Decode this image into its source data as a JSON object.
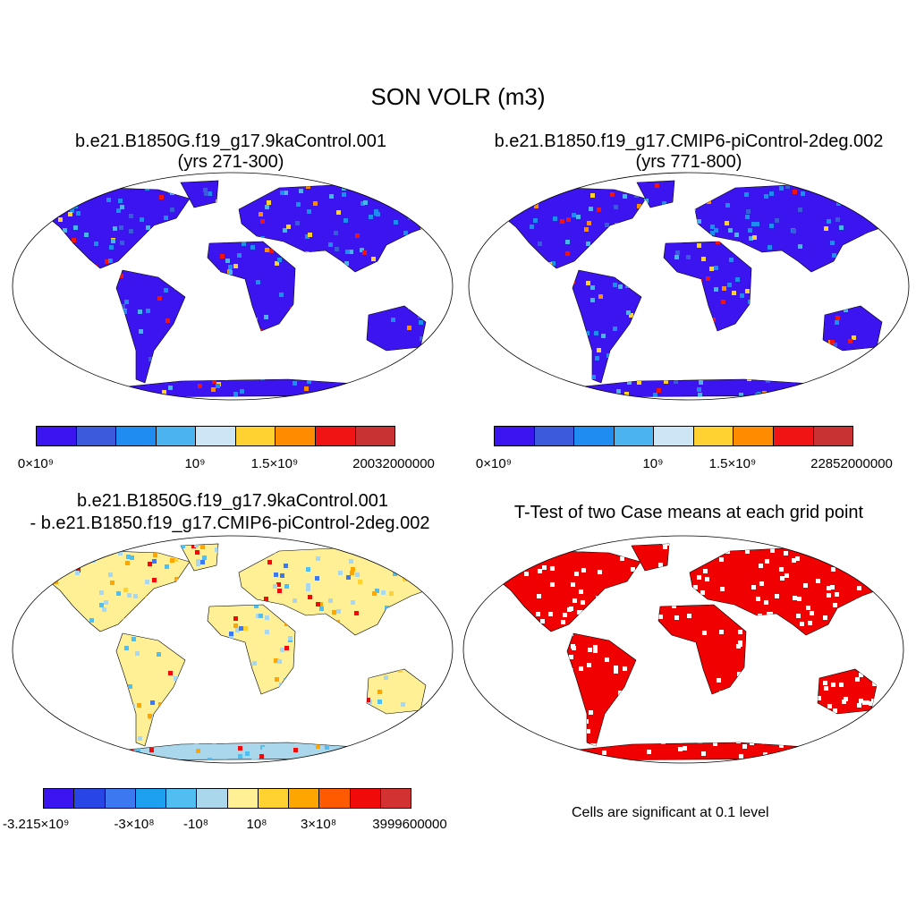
{
  "figure_title": "SON VOLR (m3)",
  "panels": [
    {
      "id": "case1",
      "title_line1": "b.e21.B1850G.f19_g17.9kaControl.001",
      "title_line2": "(yrs 271-300)",
      "palette": [
        "#3c14f0",
        "#3c5adc",
        "#1e8cf0",
        "#4bb4f0",
        "#cde6f5",
        "#ffd232",
        "#ff8c00",
        "#f01414",
        "#c83232"
      ],
      "labels": [
        "0×10⁹",
        "10⁹",
        "1.5×10⁹",
        "20032000000"
      ],
      "land_base": "#3c14f0",
      "hot": "#f01414"
    },
    {
      "id": "case2",
      "title_line1": "b.e21.B1850.f19_g17.CMIP6-piControl-2deg.002",
      "title_line2": "(yrs 771-800)",
      "palette": [
        "#3c14f0",
        "#3c5adc",
        "#1e8cf0",
        "#4bb4f0",
        "#cde6f5",
        "#ffd232",
        "#ff8c00",
        "#f01414",
        "#c83232"
      ],
      "labels": [
        "0×10⁹",
        "10⁹",
        "1.5×10⁹",
        "22852000000"
      ],
      "land_base": "#3c14f0",
      "hot": "#f01414"
    },
    {
      "id": "diff",
      "title_line1": "b.e21.B1850G.f19_g17.9kaControl.001",
      "title_line2": "- b.e21.B1850.f19_g17.CMIP6-piControl-2deg.002",
      "palette": [
        "#3c14f0",
        "#2846e6",
        "#3c78f0",
        "#1ea0f0",
        "#50bef0",
        "#aad7eb",
        "#fff096",
        "#ffd232",
        "#ffa500",
        "#ff5a00",
        "#f00a0a",
        "#d23232"
      ],
      "labels": [
        "-3.215×10⁹",
        "-3×10⁸",
        "-10⁸",
        "10⁸",
        "3×10⁸",
        "3999600000"
      ],
      "land_base": "#fff096",
      "hot": "#f00a0a"
    },
    {
      "id": "ttest",
      "title_line1": "T-Test of two Case means at each grid point",
      "note": "Cells are significant at 0.1 level",
      "fill": "#f00000"
    }
  ]
}
